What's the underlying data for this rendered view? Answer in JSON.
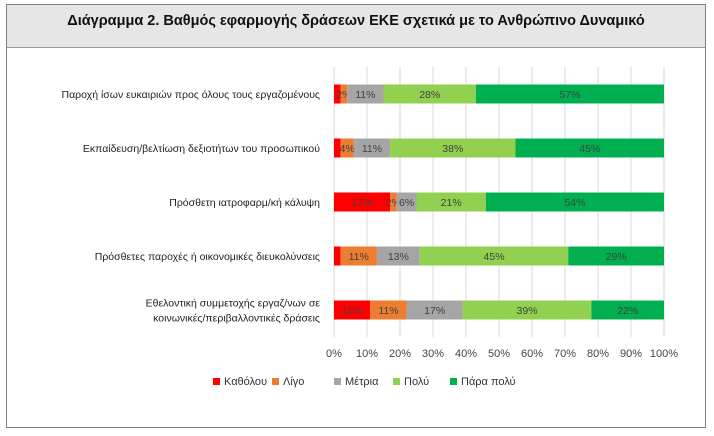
{
  "chart_data": {
    "type": "bar",
    "orientation": "horizontal",
    "stacked": "percent",
    "title": "Διάγραμμα 2. Βαθμός εφαρμογής δράσεων ΕΚΕ σχετικά με το Ανθρώπινο Δυναμικό",
    "categories": [
      [
        "Παροχή ίσων ευκαιριών προς όλους τους εργαζομένους"
      ],
      [
        "Εκπαίδευση/βελτίωση  δεξιοτήτων του προσωπικού"
      ],
      [
        "Πρόσθετη ιατροφαρμ/κή κάλυψη"
      ],
      [
        "Πρόσθετες παροχές ή οικονομικές διευκολύνσεις"
      ],
      [
        "Εθελοντική συμμετοχής εργαζ/νων σε",
        "κοινωνικές/περιβαλλοντικές δράσεις"
      ]
    ],
    "series": [
      {
        "name": "Καθόλου",
        "color": "#ff0000",
        "values": [
          2,
          2,
          17,
          2,
          11
        ],
        "labels": [
          "",
          "",
          "17%",
          "",
          "11%"
        ]
      },
      {
        "name": "Λίγο",
        "color": "#ed7d31",
        "values": [
          2,
          4,
          2,
          11,
          11
        ],
        "labels": [
          "2%",
          "4%",
          "2%",
          "11%",
          "11%"
        ]
      },
      {
        "name": "Μέτρια",
        "color": "#a5a5a5",
        "values": [
          11,
          11,
          6,
          13,
          17
        ],
        "labels": [
          "11%",
          "11%",
          "6%",
          "13%",
          "17%"
        ]
      },
      {
        "name": "Πολύ",
        "color": "#92d050",
        "values": [
          28,
          38,
          21,
          45,
          39
        ],
        "labels": [
          "28%",
          "38%",
          "21%",
          "45%",
          "39%"
        ]
      },
      {
        "name": "Πάρα πολύ",
        "color": "#00b050",
        "values": [
          57,
          45,
          54,
          29,
          22
        ],
        "labels": [
          "57%",
          "45%",
          "54%",
          "29%",
          "22%"
        ]
      }
    ],
    "xlim": [
      0,
      100
    ],
    "xticks": [
      "0%",
      "10%",
      "20%",
      "30%",
      "40%",
      "50%",
      "60%",
      "70%",
      "80%",
      "90%",
      "100%"
    ],
    "grid": "vertical",
    "legend_position": "bottom"
  }
}
